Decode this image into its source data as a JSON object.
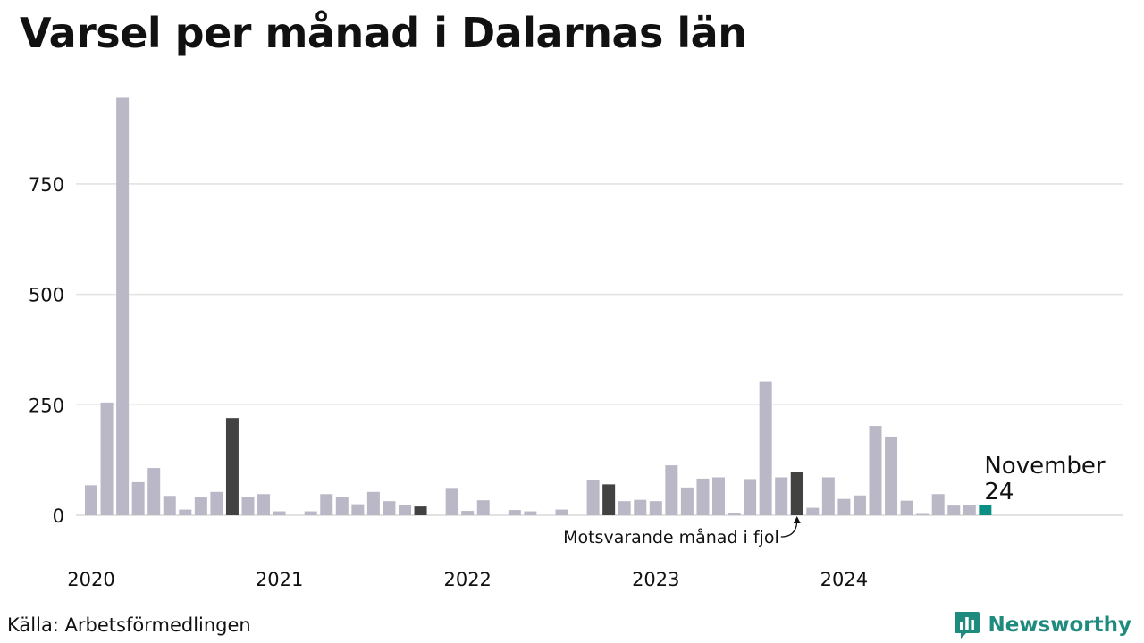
{
  "title": "Varsel per månad i Dalarnas län",
  "source": "Källa: Arbetsförmedlingen",
  "brand": {
    "name": "Newsworthy",
    "icon": "newsworthy-logo-icon",
    "color": "#1f8a7e"
  },
  "colors": {
    "default": "#bab8c6",
    "highlight": "#424242",
    "current": "#0b8f84",
    "grid": "#e2e2e2"
  },
  "chart_data": {
    "type": "bar",
    "yticks": [
      0,
      250,
      500,
      750
    ],
    "ylim": [
      0,
      950
    ],
    "year_labels": [
      {
        "label": "2020",
        "index": 0
      },
      {
        "label": "2021",
        "index": 12
      },
      {
        "label": "2022",
        "index": 24
      },
      {
        "label": "2023",
        "index": 36
      },
      {
        "label": "2024",
        "index": 48
      }
    ],
    "values": [
      68,
      255,
      945,
      75,
      107,
      44,
      13,
      42,
      53,
      220,
      42,
      48,
      9,
      0,
      9,
      48,
      42,
      25,
      53,
      32,
      23,
      20,
      0,
      62,
      10,
      34,
      0,
      12,
      9,
      0,
      13,
      0,
      80,
      70,
      32,
      35,
      32,
      113,
      63,
      83,
      86,
      6,
      82,
      302,
      86,
      98,
      17,
      86,
      37,
      45,
      202,
      178,
      33,
      5,
      48,
      22,
      24,
      24
    ],
    "highlight_indices": [
      9,
      21,
      33,
      45
    ],
    "current_index": 57,
    "current_label": "November",
    "current_value_label": "24",
    "annotation": "Motsvarande månad i fjol"
  }
}
